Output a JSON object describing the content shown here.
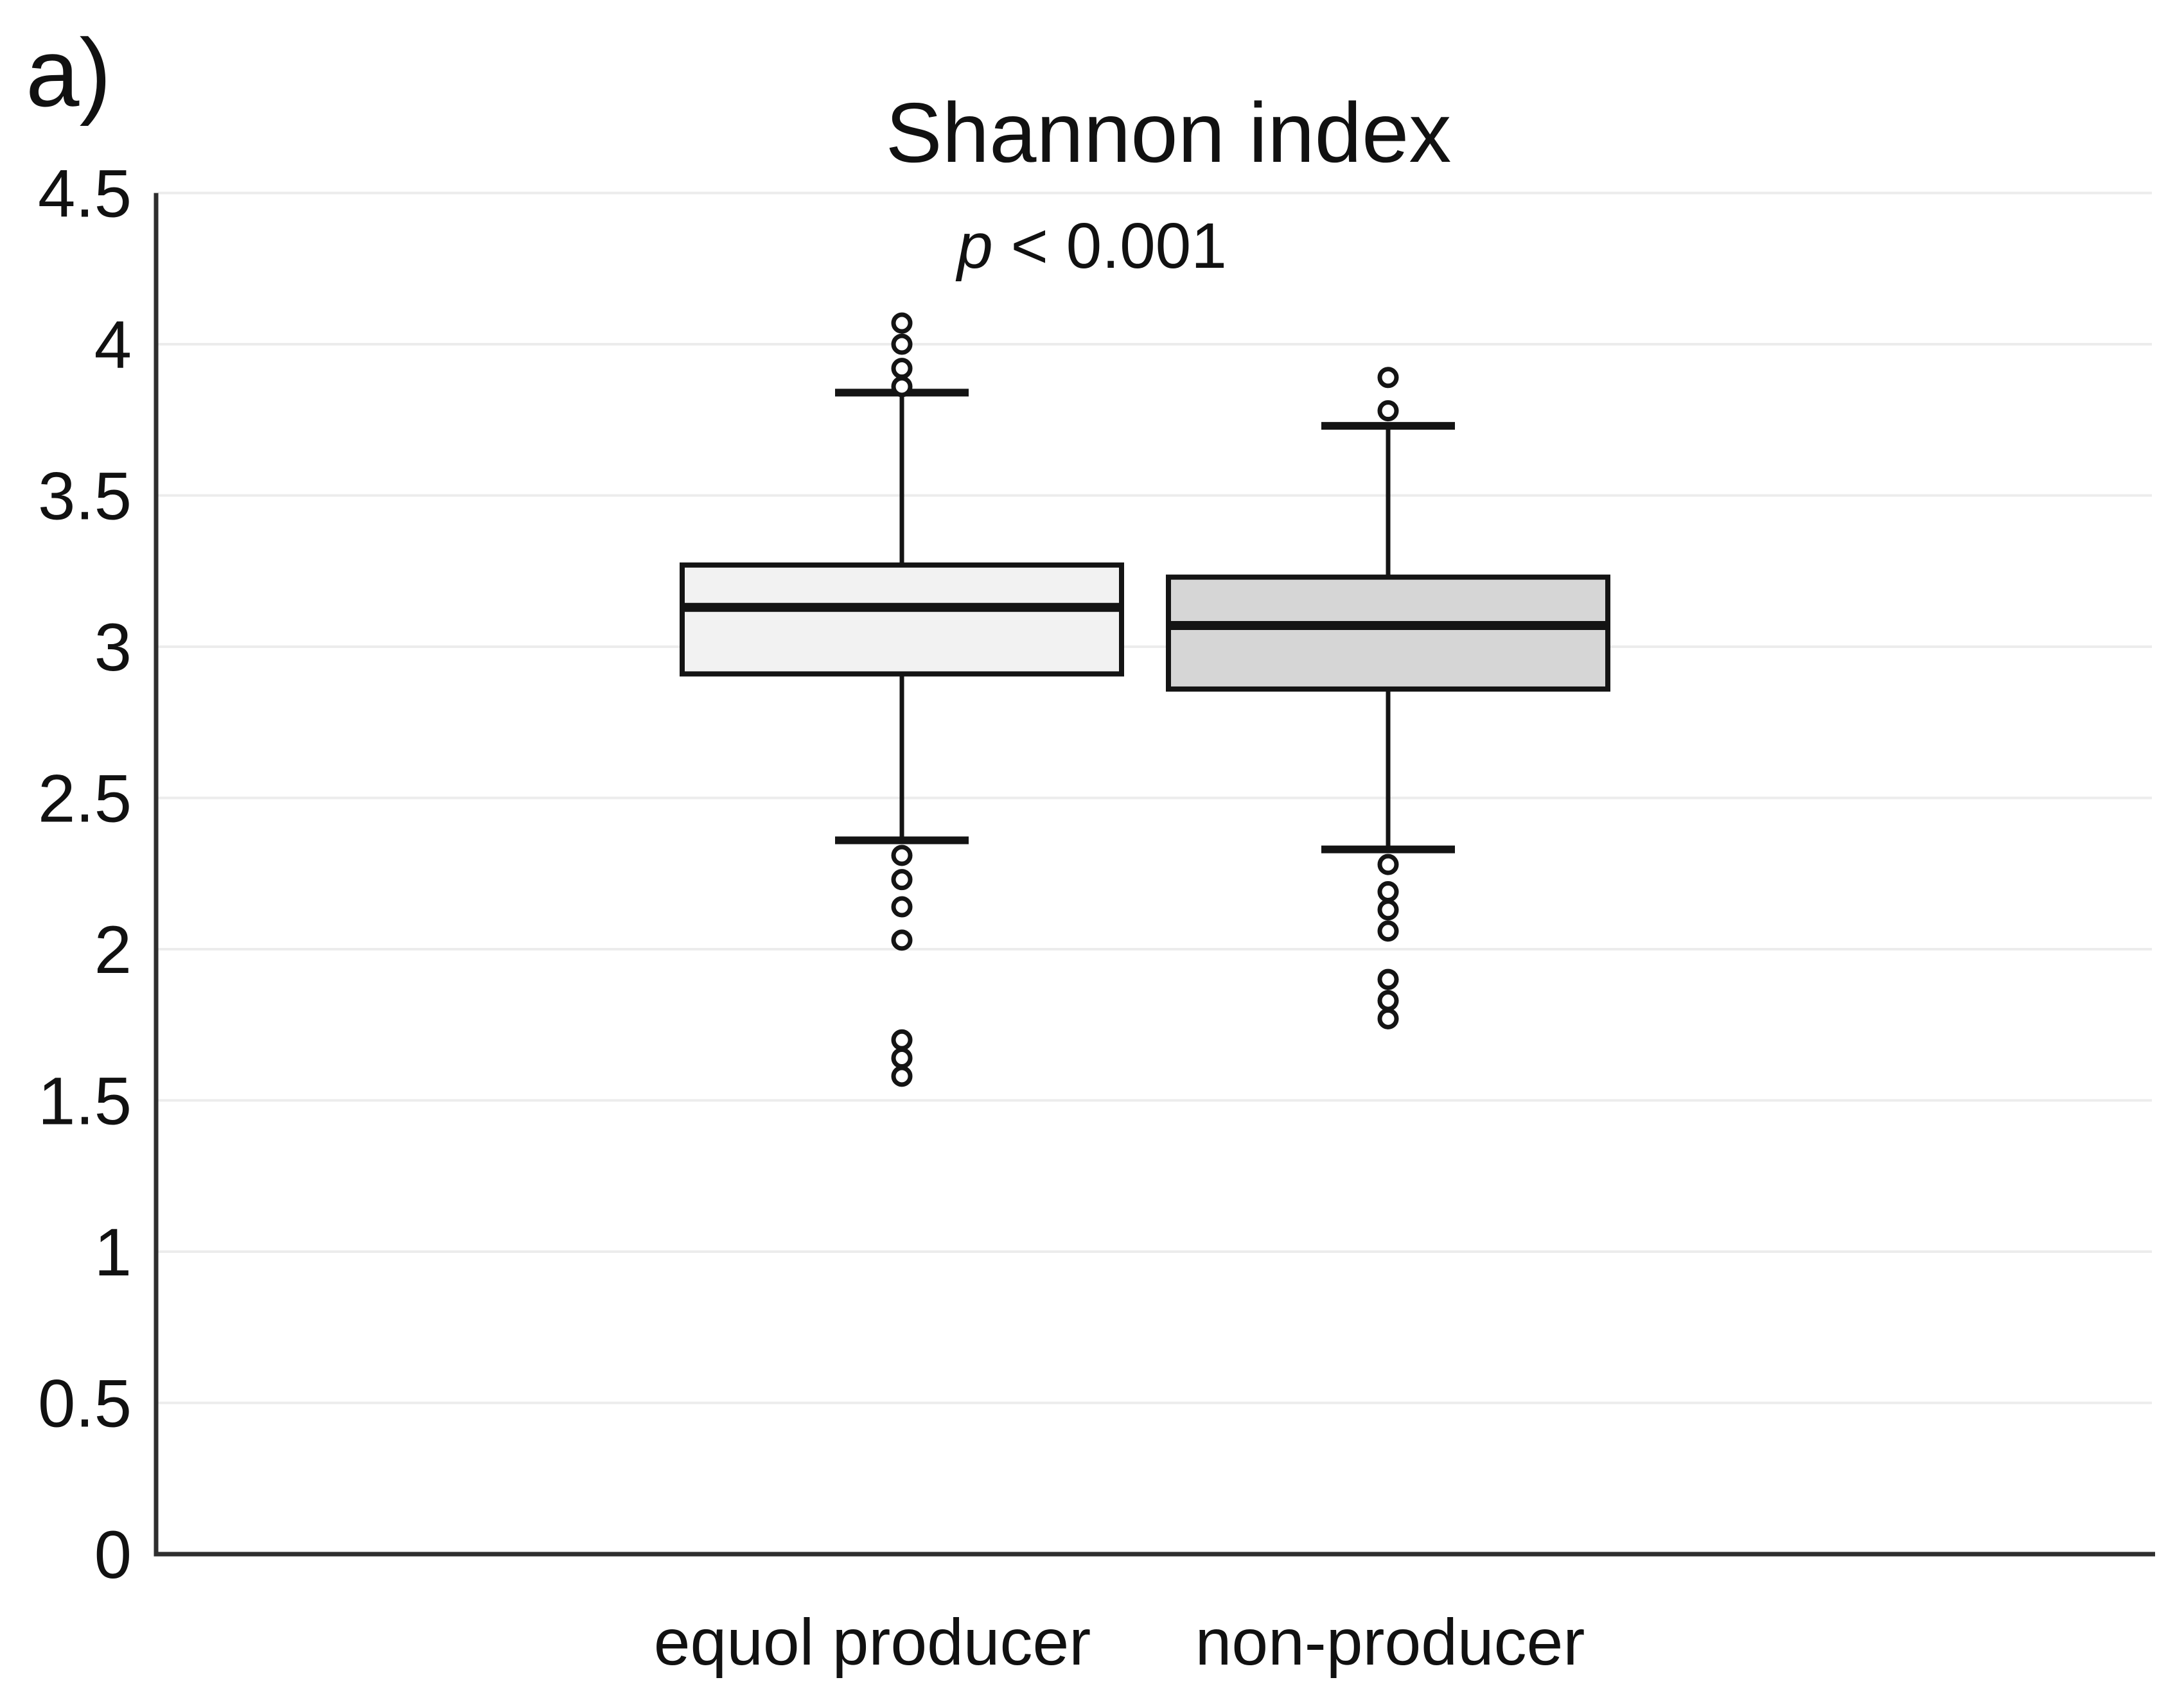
{
  "panel_label": "a)",
  "chart_data": {
    "type": "boxplot",
    "title": "Shannon index",
    "annotation": "p < 0.001",
    "annotation_symbol": "p",
    "annotation_rest": " < 0.001",
    "ylabel": "",
    "xlabel": "",
    "ylim": [
      0,
      4.5
    ],
    "yticks": [
      4.5,
      4,
      3.5,
      3,
      2.5,
      2,
      1.5,
      1,
      0.5,
      0
    ],
    "grid": true,
    "legend": "none",
    "categories": [
      "equol producer",
      "non-producer"
    ],
    "series": [
      {
        "name": "equol producer",
        "fill": "#f2f2f2",
        "whisker_low": 2.36,
        "q1": 2.91,
        "median": 3.13,
        "q3": 3.27,
        "whisker_high": 3.84,
        "outliers_high": [
          4.07,
          4.0,
          3.92,
          3.86
        ],
        "outliers_low": [
          2.31,
          2.23,
          2.14,
          2.03,
          1.7,
          1.64,
          1.58
        ]
      },
      {
        "name": "non-producer",
        "fill": "#d6d6d6",
        "whisker_low": 2.33,
        "q1": 2.86,
        "median": 3.07,
        "q3": 3.23,
        "whisker_high": 3.73,
        "outliers_high": [
          3.89,
          3.78
        ],
        "outliers_low": [
          2.28,
          2.19,
          2.13,
          2.06,
          1.9,
          1.83,
          1.77
        ]
      }
    ],
    "colors": {
      "background": "#ffffff",
      "stroke": "#141414",
      "axis": "#2e2e2e",
      "grid": "#ececec",
      "outlier_fill": "#ffffff"
    }
  }
}
